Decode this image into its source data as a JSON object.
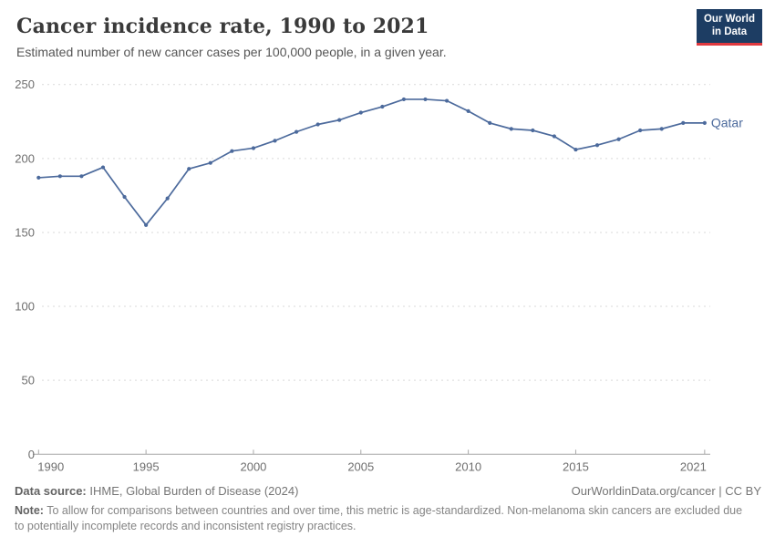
{
  "header": {
    "title": "Cancer incidence rate, 1990 to 2021",
    "subtitle": "Estimated number of new cancer cases per 100,000 people, in a given year."
  },
  "logo": {
    "line1": "Our World",
    "line2": "in Data",
    "bg_color": "#1d3d63",
    "accent_color": "#e0393f"
  },
  "chart_data": {
    "type": "line",
    "title": "Cancer incidence rate, 1990 to 2021",
    "xlabel": "",
    "ylabel": "",
    "x": [
      1990,
      1991,
      1992,
      1993,
      1994,
      1995,
      1996,
      1997,
      1998,
      1999,
      2000,
      2001,
      2002,
      2003,
      2004,
      2005,
      2006,
      2007,
      2008,
      2009,
      2010,
      2011,
      2012,
      2013,
      2014,
      2015,
      2016,
      2017,
      2018,
      2019,
      2020,
      2021
    ],
    "series": [
      {
        "name": "Qatar",
        "color": "#4c6a9c",
        "values": [
          187,
          188,
          188,
          194,
          174,
          155,
          173,
          193,
          197,
          205,
          207,
          212,
          218,
          223,
          226,
          231,
          235,
          240,
          240,
          239,
          232,
          224,
          220,
          219,
          215,
          206,
          209,
          213,
          219,
          220,
          224,
          224
        ]
      }
    ],
    "x_ticks": [
      1990,
      1995,
      2000,
      2005,
      2010,
      2015,
      2021
    ],
    "y_ticks": [
      0,
      50,
      100,
      150,
      200,
      250
    ],
    "xlim": [
      1990,
      2021
    ],
    "ylim": [
      0,
      250
    ],
    "grid": "horizontal-dashed",
    "legend_position": "end-of-line-label"
  },
  "colors": {
    "line": "#4c6a9c",
    "grid": "#d9d9d9",
    "axis": "#a8a8a8",
    "tick_text": "#6e6e6e"
  },
  "footer": {
    "source_label": "Data source:",
    "source_text": "IHME, Global Burden of Disease (2024)",
    "attribution": "OurWorldinData.org/cancer | CC BY",
    "note_label": "Note:",
    "note_text": "To allow for comparisons between countries and over time, this metric is age-standardized. Non-melanoma skin cancers are excluded due to potentially incomplete records and inconsistent registry practices."
  }
}
